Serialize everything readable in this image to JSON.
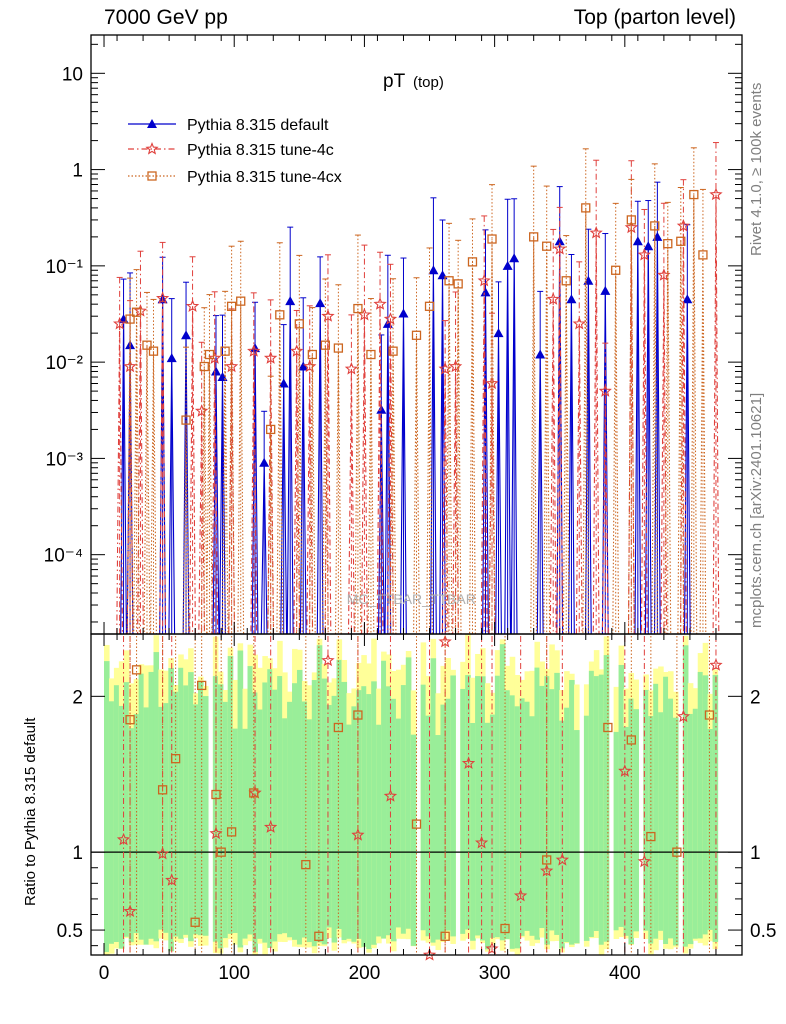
{
  "header": {
    "left": "7000 GeV pp",
    "right": "Top (parton level)"
  },
  "side_labels": {
    "rivet": "Rivet 4.1.0, ≥ 100k events",
    "mcplots": "mcplots.cern.ch [arXiv:2401.10621]"
  },
  "chart_data": {
    "type": "line",
    "title": "pT",
    "title_sub": "(top)",
    "watermark": "MC_TTBAR_TTBAR",
    "xlabel": "",
    "ylabel_upper": "",
    "ylabel_lower": "Ratio to Pythia 8.315 default",
    "xlim": [
      -10,
      490
    ],
    "ylim_upper": [
      1.5e-05,
      25
    ],
    "yscale_upper": "log",
    "ylim_lower": [
      0.34,
      2.4
    ],
    "xticks": [
      "0",
      "100",
      "200",
      "300",
      "400"
    ],
    "yticks_upper": [
      "10⁻⁴",
      "10⁻³",
      "10⁻²",
      "10⁻¹",
      "1",
      "10"
    ],
    "yticks_lower": [
      "0.5",
      "1",
      "2"
    ],
    "legend_position": "top-left",
    "series": [
      {
        "name": "Pythia 8.315 default",
        "color": "#0000cc",
        "marker": "triangle",
        "style": "solid",
        "x": [
          15,
          20,
          45,
          52,
          63,
          86,
          91,
          116,
          123,
          138,
          143,
          153,
          166,
          213,
          218,
          230,
          253,
          260,
          293,
          303,
          310,
          315,
          335,
          350,
          359,
          372,
          385,
          410,
          418,
          425,
          448
        ],
        "y": [
          0.028,
          0.015,
          0.045,
          0.011,
          0.019,
          0.008,
          0.007,
          0.014,
          0.0009,
          0.006,
          0.043,
          0.009,
          0.041,
          0.0032,
          0.025,
          0.032,
          0.09,
          0.08,
          0.053,
          0.02,
          0.1,
          0.12,
          0.012,
          0.18,
          0.045,
          0.07,
          0.055,
          0.18,
          0.16,
          0.2,
          0.045
        ]
      },
      {
        "name": "Pythia 8.315 tune-4c",
        "color": "#e0403c",
        "marker": "star",
        "style": "dashdot",
        "x": [
          12,
          20,
          28,
          45,
          68,
          75,
          85,
          98,
          115,
          128,
          148,
          158,
          172,
          190,
          200,
          212,
          220,
          262,
          270,
          292,
          298,
          345,
          350,
          365,
          378,
          385,
          405,
          415,
          430,
          445,
          470
        ],
        "y": [
          0.025,
          0.009,
          0.034,
          0.046,
          0.038,
          0.0031,
          0.011,
          0.009,
          0.013,
          0.011,
          0.013,
          0.009,
          0.03,
          0.0085,
          0.031,
          0.04,
          0.028,
          0.0085,
          0.009,
          0.07,
          0.006,
          0.045,
          0.15,
          0.025,
          0.22,
          0.005,
          0.25,
          0.13,
          0.08,
          0.26,
          0.55
        ]
      },
      {
        "name": "Pythia 8.315 tune-4cx",
        "color": "#cc6620",
        "marker": "square",
        "style": "dotted",
        "x": [
          20,
          25,
          33,
          38,
          63,
          77,
          81,
          93,
          98,
          105,
          128,
          135,
          150,
          160,
          170,
          180,
          195,
          205,
          222,
          240,
          250,
          265,
          272,
          283,
          298,
          330,
          340,
          355,
          370,
          393,
          405,
          423,
          433,
          443,
          453,
          460
        ],
        "y": [
          0.028,
          0.033,
          0.015,
          0.013,
          0.0025,
          0.009,
          0.012,
          0.013,
          0.038,
          0.043,
          0.002,
          0.031,
          0.025,
          0.012,
          0.015,
          0.014,
          0.036,
          0.012,
          0.013,
          0.019,
          0.038,
          0.07,
          0.065,
          0.11,
          0.19,
          0.2,
          0.16,
          0.07,
          0.4,
          0.09,
          0.3,
          0.26,
          0.17,
          0.18,
          0.55,
          0.13
        ]
      }
    ],
    "ratio_series": [
      {
        "name": "Pythia 8.315 tune-4c",
        "color": "#e0403c",
        "marker": "star",
        "x": [
          15,
          20,
          45,
          52,
          86,
          116,
          128,
          172,
          195,
          220,
          250,
          262,
          280,
          290,
          298,
          320,
          340,
          352,
          400,
          415,
          445,
          470
        ],
        "y": [
          1.08,
          0.62,
          0.99,
          0.82,
          1.12,
          1.38,
          1.16,
          2.23,
          1.11,
          1.36,
          0.31,
          2.35,
          1.57,
          1.06,
          0.38,
          0.72,
          0.88,
          0.95,
          1.52,
          0.94,
          1.87,
          2.2
        ]
      },
      {
        "name": "Pythia 8.315 tune-4cx",
        "color": "#cc6620",
        "marker": "square",
        "x": [
          20,
          25,
          45,
          55,
          70,
          75,
          86,
          90,
          98,
          115,
          155,
          165,
          180,
          195,
          240,
          262,
          308,
          340,
          387,
          405,
          420,
          440,
          465
        ],
        "y": [
          1.85,
          2.17,
          1.4,
          1.6,
          0.55,
          2.07,
          1.37,
          1.0,
          1.13,
          1.38,
          0.92,
          0.46,
          1.8,
          1.88,
          1.18,
          0.46,
          0.51,
          0.95,
          1.8,
          1.72,
          1.1,
          1.0,
          1.88
        ]
      }
    ]
  }
}
